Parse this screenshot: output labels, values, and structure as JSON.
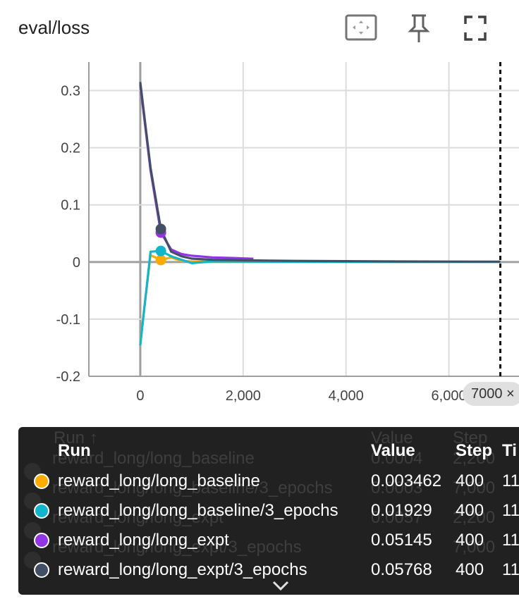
{
  "card": {
    "title": "eval/loss"
  },
  "toolbar": {
    "fit_icon": "fit-domain-icon",
    "pin_icon": "pin-icon",
    "fullscreen_icon": "fullscreen-icon"
  },
  "chart_data": {
    "type": "line",
    "title": "eval/loss",
    "xlim": [
      -1000,
      7500
    ],
    "ylim": [
      -0.2,
      0.35
    ],
    "x_ticks": [
      "0",
      "2,000",
      "4,000",
      "6,000"
    ],
    "y_ticks": [
      "0.3",
      "0.2",
      "0.1",
      "0",
      "-0.1",
      "-0.2"
    ],
    "grid": true,
    "cursor_step": 7000,
    "cursor_label": "7000 ×",
    "series": [
      {
        "name": "reward_long/long_baseline",
        "color": "#f9ab00",
        "x": [
          0,
          200,
          400,
          600,
          800,
          1000,
          1400,
          1800,
          2200
        ],
        "y": [
          -0.14,
          0.012,
          0.0035,
          0.008,
          0.002,
          0.001,
          0.0005,
          0.0004,
          0.0004
        ]
      },
      {
        "name": "reward_long/long_baseline/3_epochs",
        "color": "#12b5cb",
        "x": [
          0,
          200,
          400,
          600,
          800,
          1000,
          1400,
          2000,
          3000,
          4000,
          5000,
          6000,
          7000
        ],
        "y": [
          -0.146,
          0.018,
          0.0193,
          0.01,
          0.004,
          -0.002,
          0.001,
          0.0007,
          0.0005,
          0.0004,
          0.0003,
          0.0003,
          0.0003
        ]
      },
      {
        "name": "reward_long/long_expt",
        "color": "#9334e6",
        "x": [
          0,
          200,
          400,
          600,
          800,
          1000,
          1400,
          1800,
          2200
        ],
        "y": [
          0.31,
          0.16,
          0.0515,
          0.022,
          0.014,
          0.011,
          0.008,
          0.007,
          0.0057
        ]
      },
      {
        "name": "reward_long/long_expt/3_epochs",
        "color": "#425066",
        "x": [
          0,
          200,
          400,
          600,
          800,
          1000,
          1400,
          2000,
          3000,
          4000,
          5000,
          6000,
          7000
        ],
        "y": [
          0.315,
          0.165,
          0.0577,
          0.018,
          0.01,
          0.006,
          0.004,
          0.003,
          0.002,
          0.0015,
          0.001,
          0.0008,
          0.0006
        ]
      }
    ]
  },
  "tooltip": {
    "ghost_header": {
      "run": "Run ↑",
      "value": "Value",
      "step": "Step"
    },
    "header": {
      "run": "Run",
      "value": "Value",
      "step": "Step",
      "time": "Ti"
    },
    "ghost_rows": [
      {
        "run": "reward_long/long_baseline",
        "value": "0.0004",
        "step": "2,200"
      },
      {
        "run": "reward_long/long_baseline/3_epochs",
        "value": "0.0003",
        "step": "7,000"
      },
      {
        "run": "reward_long/long_expt",
        "value": "0.0057",
        "step": "2,200"
      },
      {
        "run": "reward_long/long_expt/3_epochs",
        "value": "",
        "step": "7,000"
      }
    ],
    "rows": [
      {
        "run": "reward_long/long_baseline",
        "value": "0.003462",
        "step": "400",
        "time": "11",
        "color": "#f9ab00"
      },
      {
        "run": "reward_long/long_baseline/3_epochs",
        "value": "0.01929",
        "step": "400",
        "time": "11",
        "color": "#12b5cb"
      },
      {
        "run": "reward_long/long_expt",
        "value": "0.05145",
        "step": "400",
        "time": "11",
        "color": "#9334e6"
      },
      {
        "run": "reward_long/long_expt/3_epochs",
        "value": "0.05768",
        "step": "400",
        "time": "11",
        "color": "#425066"
      }
    ],
    "expand_icon": "chevron-down-icon"
  }
}
